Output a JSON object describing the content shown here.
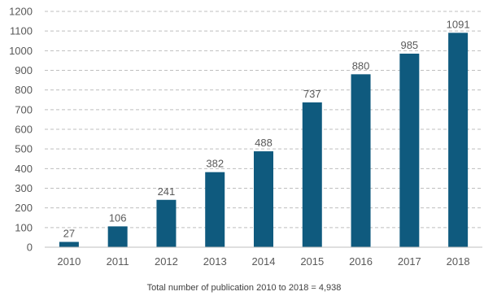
{
  "chart_data": {
    "type": "bar",
    "categories": [
      "2010",
      "2011",
      "2012",
      "2013",
      "2014",
      "2015",
      "2016",
      "2017",
      "2018"
    ],
    "values": [
      27,
      106,
      241,
      382,
      488,
      737,
      880,
      985,
      1091
    ],
    "ylim": [
      0,
      1200
    ],
    "yticks": [
      0,
      100,
      200,
      300,
      400,
      500,
      600,
      700,
      800,
      900,
      1000,
      1100,
      1200
    ],
    "grid": true,
    "data_labels": true,
    "bar_color": "#0f5a7e",
    "footnote": "Total number of publication 2010 to 2018 = 4,938"
  }
}
